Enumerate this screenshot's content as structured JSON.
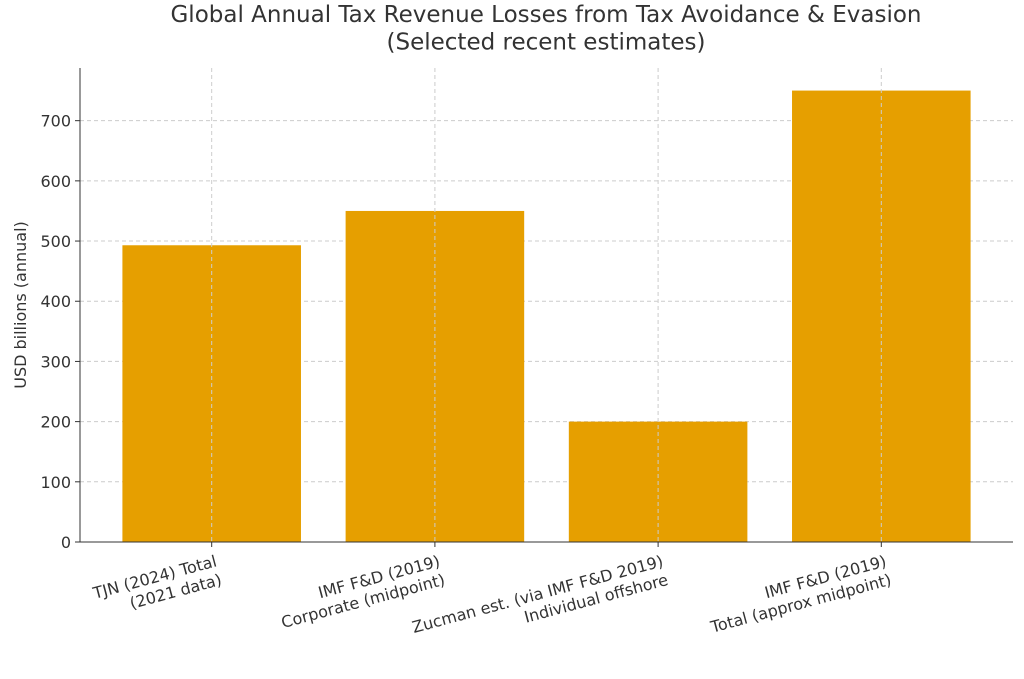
{
  "chart_data": {
    "type": "bar",
    "title": "Global Annual Tax Revenue Losses from Tax Avoidance & Evasion\n(Selected recent estimates)",
    "y_label": "USD billions (annual)",
    "categories": [
      "TJN (2024) Total\n(2021 data)",
      "IMF F&D (2019)\nCorporate (midpoint)",
      "Zucman est. (via IMF F&D 2019)\nIndividual offshore",
      "IMF F&D (2019)\nTotal (approx midpoint)"
    ],
    "values": [
      493,
      550,
      200,
      750
    ],
    "color": "#e69f00",
    "ylim": [
      0,
      787.5
    ],
    "yticks": [
      0,
      100,
      200,
      300,
      400,
      500,
      600,
      700
    ],
    "grid": true
  }
}
